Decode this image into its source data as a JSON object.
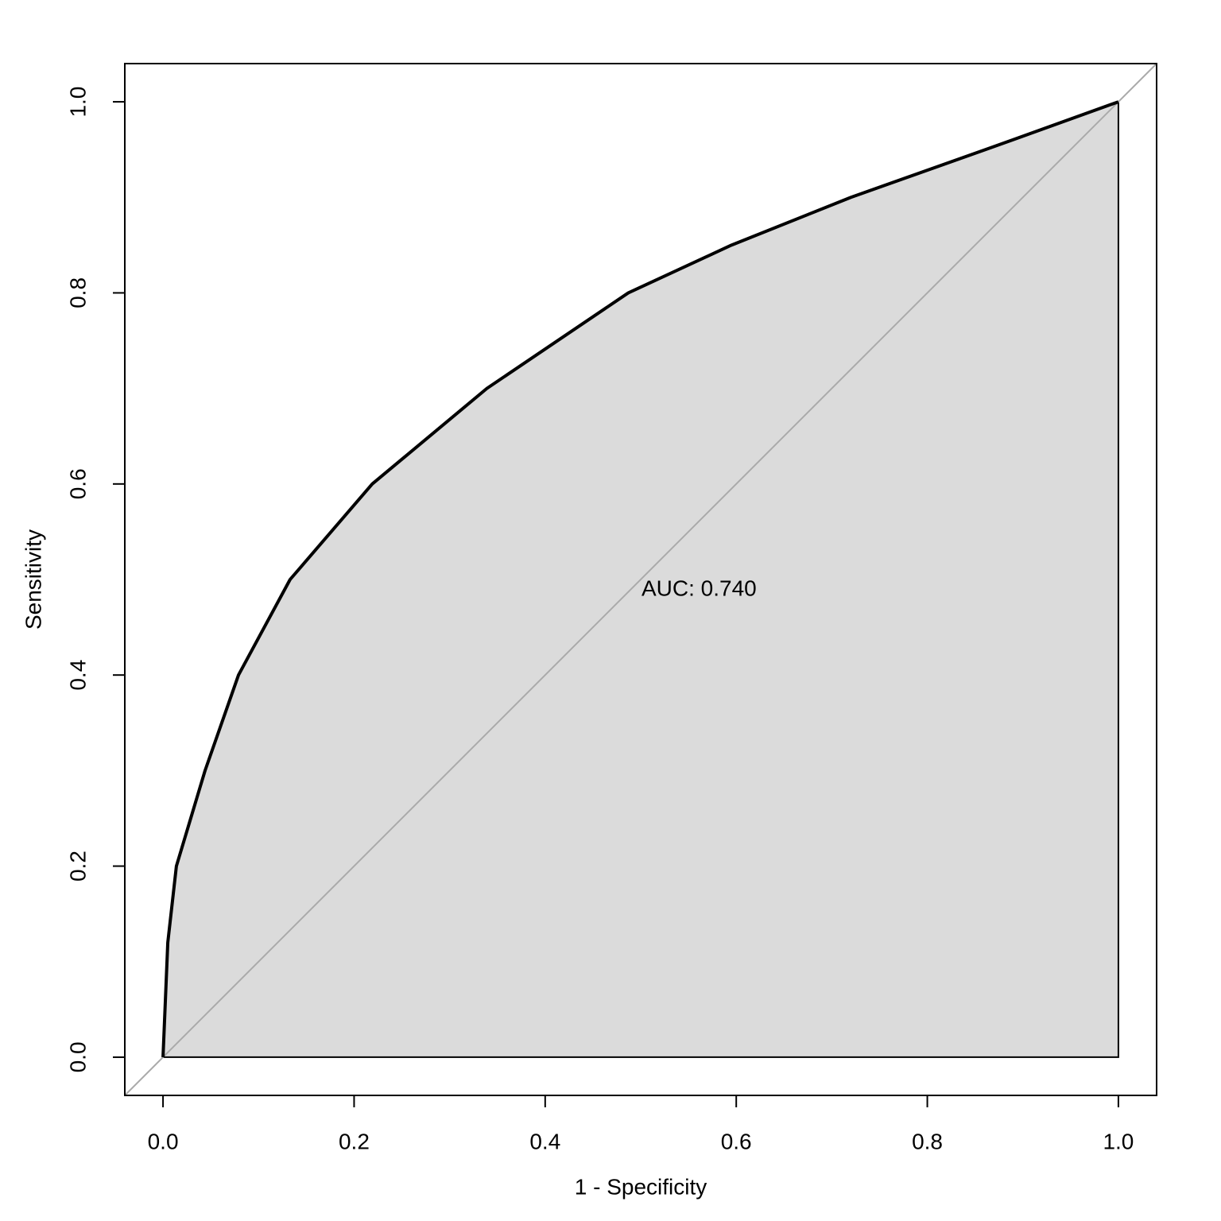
{
  "chart_data": {
    "type": "line",
    "xlabel": "1 - Specificity",
    "ylabel": "Sensitivity",
    "annotation": "AUC: 0.740",
    "x": [
      0,
      0.005,
      0.014,
      0.044,
      0.079,
      0.133,
      0.219,
      0.339,
      0.487,
      0.595,
      0.72,
      0.861,
      1
    ],
    "series": [
      {
        "color": "#000000",
        "fill": "#dbdbdb",
        "values": [
          0,
          0.12,
          0.2,
          0.3,
          0.4,
          0.5,
          0.6,
          0.7,
          0.8,
          0.85,
          0.9,
          0.95,
          1
        ]
      }
    ],
    "xlim": [
      -0.04,
      1.04
    ],
    "ylim": [
      -0.04,
      1.04
    ],
    "xticks": [
      {
        "value": 0,
        "label": "0.0"
      },
      0.2,
      0.4,
      0.6,
      0.8,
      {
        "value": 1,
        "label": "1.0"
      }
    ],
    "yticks": [
      {
        "value": 0,
        "label": "0.0"
      },
      0.2,
      0.4,
      0.6,
      0.8,
      {
        "value": 1,
        "label": "1.0"
      }
    ]
  }
}
